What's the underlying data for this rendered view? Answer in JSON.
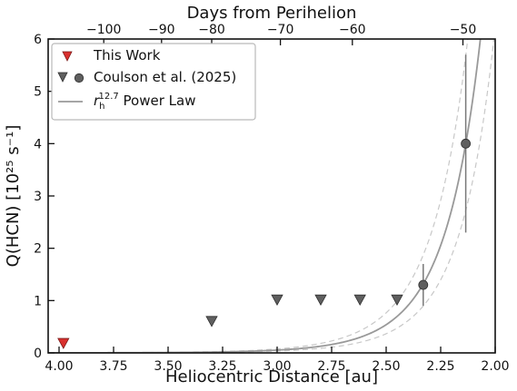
{
  "chart_data": {
    "type": "scatter",
    "title": "",
    "xlabel": "Heliocentric Distance [au]",
    "ylabel": "Q(HCN) [10²⁵ s⁻¹]",
    "xlim": [
      4.05,
      2.0
    ],
    "ylim": [
      0,
      6
    ],
    "x_ticks": [
      4.0,
      3.75,
      3.5,
      3.25,
      3.0,
      2.75,
      2.5,
      2.25,
      2.0
    ],
    "x_tick_labels": [
      "4.00",
      "3.75",
      "3.50",
      "3.25",
      "3.00",
      "2.75",
      "2.50",
      "2.25",
      "2.00"
    ],
    "y_ticks": [
      0,
      1,
      2,
      3,
      4,
      5,
      6
    ],
    "y_tick_labels": [
      "0",
      "1",
      "2",
      "3",
      "4",
      "5",
      "6"
    ],
    "top_axis": {
      "label": "Days from Perihelion",
      "ticks": [
        {
          "label": "−100",
          "x": 3.795
        },
        {
          "label": "−90",
          "x": 3.53
        },
        {
          "label": "−80",
          "x": 3.3
        },
        {
          "label": "−70",
          "x": 2.985
        },
        {
          "label": "−60",
          "x": 2.655
        },
        {
          "label": "−50",
          "x": 2.148
        }
      ]
    },
    "grid": false,
    "legend": {
      "position": "top-left",
      "entries": [
        {
          "label": "This Work",
          "marker": "down-triangle",
          "color": "#d9302e"
        },
        {
          "label": "Coulson et al. (2025)",
          "marker": "down-triangle+circle",
          "color": "#5f5f5f"
        },
        {
          "label_base": "r",
          "label_sub": "h",
          "label_sup": "12.7",
          "label_rest": " Power Law",
          "marker": "line",
          "color": "#999999"
        }
      ]
    },
    "series": [
      {
        "name": "This Work",
        "kind": "upper-limit",
        "color": "#d9302e",
        "points": [
          {
            "x": 3.98,
            "y": 0.19
          }
        ]
      },
      {
        "name": "Coulson et al. (2025)",
        "kind": "upper-limit",
        "color": "#5f5f5f",
        "points": [
          {
            "x": 3.3,
            "y": 0.61
          },
          {
            "x": 3.0,
            "y": 1.02
          },
          {
            "x": 2.8,
            "y": 1.02
          },
          {
            "x": 2.62,
            "y": 1.02
          },
          {
            "x": 2.45,
            "y": 1.02
          }
        ]
      },
      {
        "name": "Coulson et al. (2025)",
        "kind": "detection",
        "color": "#5f5f5f",
        "points": [
          {
            "x": 2.33,
            "y": 1.3,
            "yerr_low": 0.4,
            "yerr_high": 0.4
          },
          {
            "x": 2.135,
            "y": 4.0,
            "yerr_low": 1.7,
            "yerr_high": 1.7
          }
        ]
      },
      {
        "name": "r_h^12.7 Power Law",
        "kind": "model",
        "color": "#999999",
        "exponent": 12.7,
        "anchor": {
          "x": 2.135,
          "y": 4.0
        },
        "band_scale": [
          0.68,
          1.42
        ],
        "band_color": "#c8c8c8"
      }
    ]
  }
}
